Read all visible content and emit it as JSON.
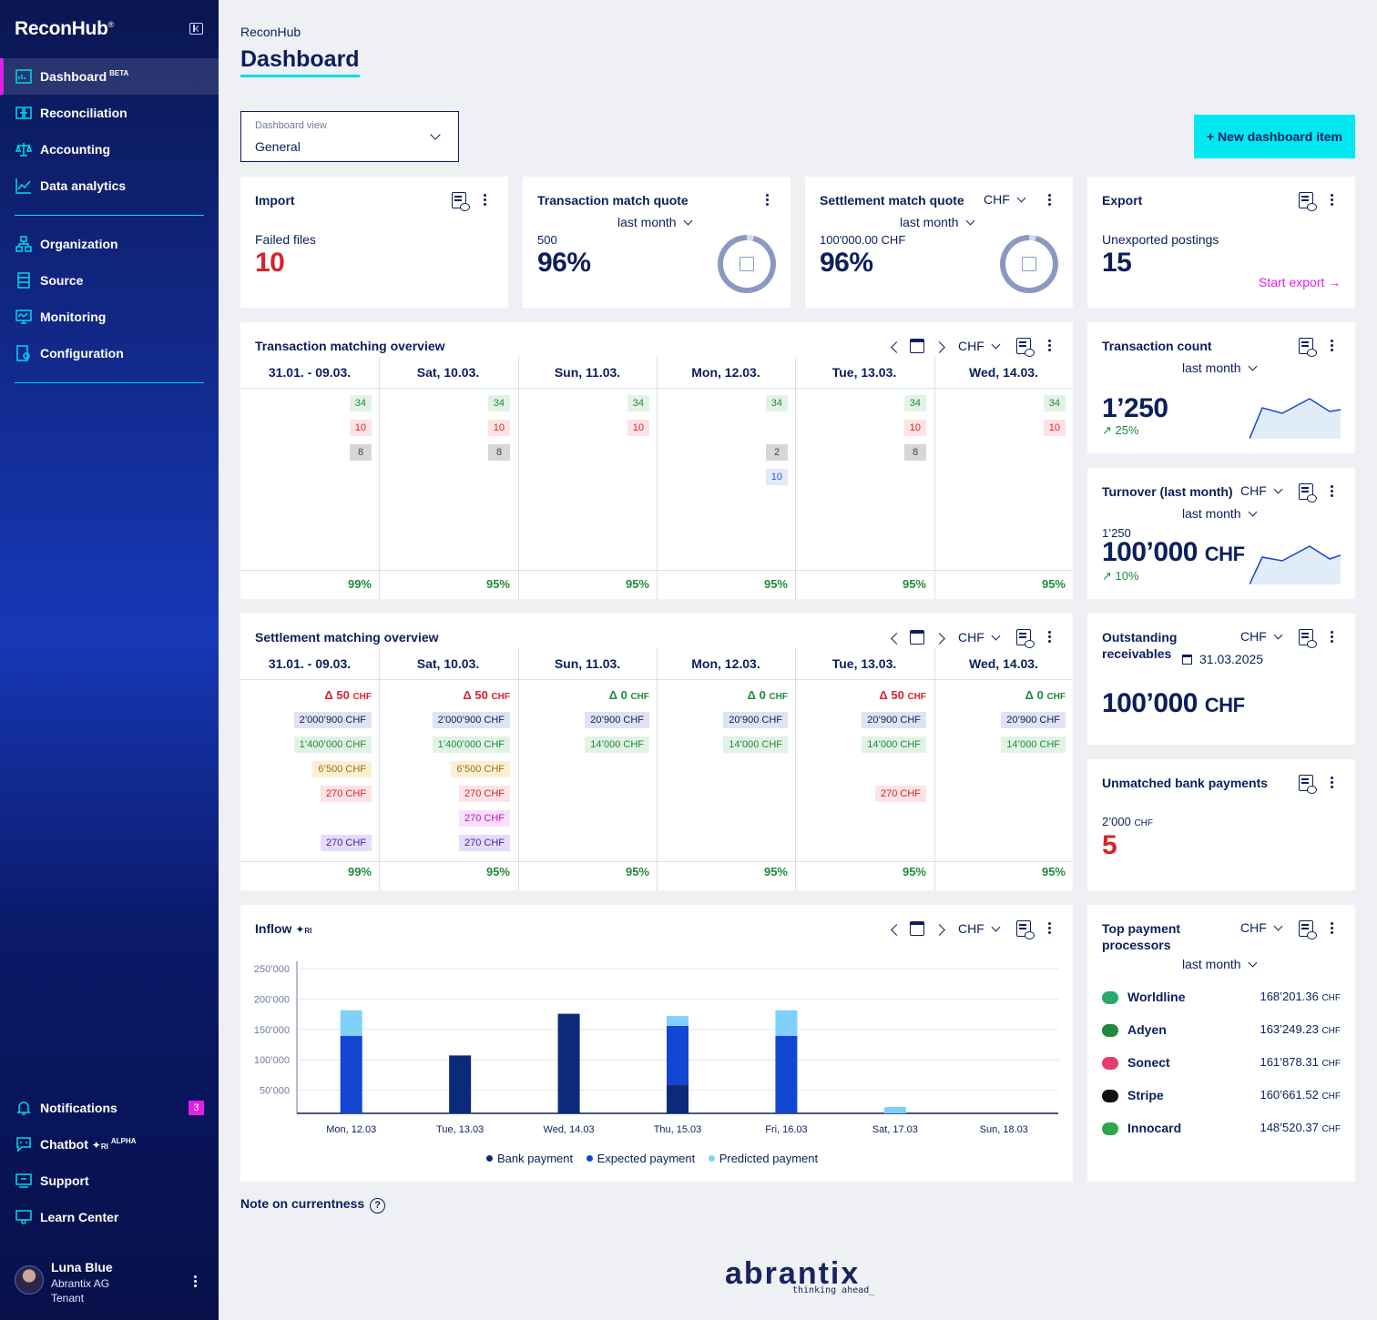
{
  "sidebar": {
    "brand": "ReconHub",
    "brand_mark": "®",
    "items": [
      {
        "label": "Dashboard",
        "sup": "BETA"
      },
      {
        "label": "Reconciliation"
      },
      {
        "label": "Accounting"
      },
      {
        "label": "Data analytics"
      },
      {
        "label": "Organization"
      },
      {
        "label": "Source"
      },
      {
        "label": "Monitoring"
      },
      {
        "label": "Configuration"
      }
    ],
    "bottom": [
      {
        "label": "Notifications",
        "badge": "3"
      },
      {
        "label": "Chatbot",
        "sup": "ALPHA"
      },
      {
        "label": "Support"
      },
      {
        "label": "Learn Center"
      }
    ],
    "user": {
      "name": "Luna Blue",
      "org": "Abrantix AG",
      "role": "Tenant"
    }
  },
  "header": {
    "breadcrumb": "ReconHub",
    "title": "Dashboard"
  },
  "view_select": {
    "label": "Dashboard view",
    "value": "General"
  },
  "new_button": "+ New dashboard item",
  "cards": {
    "import": {
      "title": "Import",
      "label": "Failed files",
      "value": "10"
    },
    "tmq": {
      "title": "Transaction match quote",
      "period": "last month",
      "sub": "500",
      "value": "96%"
    },
    "smq": {
      "title": "Settlement match quote",
      "currency": "CHF",
      "period": "last month",
      "sub": "100'000.00 CHF",
      "value": "96%"
    },
    "export": {
      "title": "Export",
      "label": "Unexported postings",
      "value": "15",
      "action": "Start export →"
    },
    "tcount": {
      "title": "Transaction count",
      "period": "last month",
      "value": "1’250",
      "trend": "↗ 25%"
    },
    "turnover": {
      "title": "Turnover (last month)",
      "currency": "CHF",
      "period": "last month",
      "sub": "1’250",
      "value": "100’000",
      "unit": "CHF",
      "trend": "↗ 10%"
    },
    "outstanding": {
      "title1": "Outstanding",
      "title2": "receivables",
      "currency": "CHF",
      "date": "31.03.2025",
      "value": "100’000",
      "unit": "CHF"
    },
    "unmatched": {
      "title": "Unmatched bank payments",
      "sub": "2’000",
      "sub_unit": "CHF",
      "value": "5"
    },
    "top": {
      "title1": "Top payment",
      "title2": "processors",
      "currency": "CHF",
      "period": "last month",
      "rows": [
        {
          "name": "Worldline",
          "value": "168’201.36",
          "unit": "CHF",
          "color": "#2aa86a"
        },
        {
          "name": "Adyen",
          "value": "163’249.23",
          "unit": "CHF",
          "color": "#1f8a3b"
        },
        {
          "name": "Sonect",
          "value": "161’878.31",
          "unit": "CHF",
          "color": "#e53e6b"
        },
        {
          "name": "Stripe",
          "value": "160’661.52",
          "unit": "CHF",
          "color": "#111111"
        },
        {
          "name": "Innocard",
          "value": "148’520.37",
          "unit": "CHF",
          "color": "#2ca84a"
        }
      ]
    }
  },
  "tmo": {
    "title": "Transaction matching overview",
    "currency": "CHF",
    "columns": [
      "31.01. - 09.03.",
      "Sat, 10.03.",
      "Sun, 11.03.",
      "Mon, 12.03.",
      "Tue, 13.03.",
      "Wed, 14.03."
    ],
    "cells": [
      [
        [
          "34",
          "g"
        ],
        [
          "10",
          "r"
        ],
        [
          "8",
          "gr"
        ]
      ],
      [
        [
          "34",
          "g"
        ],
        [
          "10",
          "r"
        ],
        [
          "8",
          "gr"
        ]
      ],
      [
        [
          "34",
          "g"
        ],
        [
          "10",
          "r"
        ]
      ],
      [
        [
          "34",
          "g"
        ],
        [
          "",
          ""
        ],
        [
          "2",
          "gr"
        ],
        [
          "10",
          "b"
        ]
      ],
      [
        [
          "34",
          "g"
        ],
        [
          "10",
          "r"
        ],
        [
          "8",
          "gr"
        ]
      ],
      [
        [
          "34",
          "g"
        ],
        [
          "10",
          "r"
        ]
      ]
    ],
    "pcts": [
      "99%",
      "95%",
      "95%",
      "95%",
      "95%",
      "95%"
    ]
  },
  "smo": {
    "title": "Settlement matching overview",
    "currency": "CHF",
    "columns": [
      "31.01. - 09.03.",
      "Sat, 10.03.",
      "Sun, 11.03.",
      "Mon, 12.03.",
      "Tue, 13.03.",
      "Wed, 14.03."
    ],
    "deltas": [
      [
        "Δ 50",
        "CHF",
        "r"
      ],
      [
        "Δ 50",
        "CHF",
        "r"
      ],
      [
        "Δ 0",
        "CHF",
        "g"
      ],
      [
        "Δ 0",
        "CHF",
        "g"
      ],
      [
        "Δ 50",
        "CHF",
        "r"
      ],
      [
        "Δ 0",
        "CHF",
        "g"
      ]
    ],
    "cells": [
      [
        [
          "2’000’900 CHF",
          "n",
          0
        ],
        [
          "1’400’000 CHF",
          "g",
          1
        ],
        [
          "6’500 CHF",
          "y",
          2
        ],
        [
          "270 CHF",
          "r",
          3
        ],
        [
          "270 CHF",
          "v",
          5
        ]
      ],
      [
        [
          "2’000’900 CHF",
          "n",
          0
        ],
        [
          "1’400’000 CHF",
          "g",
          1
        ],
        [
          "6’500 CHF",
          "y",
          2
        ],
        [
          "270 CHF",
          "r",
          3
        ],
        [
          "270 CHF",
          "p",
          4
        ],
        [
          "270 CHF",
          "v",
          5
        ]
      ],
      [
        [
          "20’900 CHF",
          "n",
          0
        ],
        [
          "14’000 CHF",
          "g",
          1
        ]
      ],
      [
        [
          "20’900 CHF",
          "n",
          0
        ],
        [
          "14’000 CHF",
          "g",
          1
        ]
      ],
      [
        [
          "20’900 CHF",
          "n",
          0
        ],
        [
          "14’000 CHF",
          "g",
          1
        ],
        [
          "270 CHF",
          "r",
          3
        ]
      ],
      [
        [
          "20’900 CHF",
          "n",
          0
        ],
        [
          "14’000 CHF",
          "g",
          1
        ]
      ]
    ],
    "pcts": [
      "99%",
      "95%",
      "95%",
      "95%",
      "95%",
      "95%"
    ]
  },
  "inflow": {
    "title": "Inflow",
    "ai_tag": "RI",
    "currency": "CHF"
  },
  "chart_data": {
    "type": "bar",
    "title": "Inflow",
    "stacked": true,
    "categories": [
      "Mon, 12.03",
      "Tue, 13.03",
      "Wed, 14.03",
      "Thu, 15.03",
      "Fri, 16.03",
      "Sat, 17.03",
      "Sun, 18.03"
    ],
    "yticks": [
      "250’000",
      "200’000",
      "150’000",
      "100’000",
      "50’000"
    ],
    "ylim": [
      0,
      250000
    ],
    "series": [
      {
        "name": "Bank payment",
        "color": "#0b2a7a",
        "values": [
          0,
          100000,
          172000,
          50000,
          0,
          0,
          0
        ]
      },
      {
        "name": "Expected payment",
        "color": "#1446d4",
        "values": [
          134000,
          0,
          0,
          101000,
          134000,
          0,
          0
        ]
      },
      {
        "name": "Predicted payment",
        "color": "#7fd0fb",
        "values": [
          44000,
          0,
          0,
          17000,
          44000,
          11000,
          0
        ]
      }
    ]
  },
  "note": "Note on currentness",
  "help": "?",
  "footer": {
    "logo": "abrantix",
    "tagline": "thinking ahead_"
  }
}
